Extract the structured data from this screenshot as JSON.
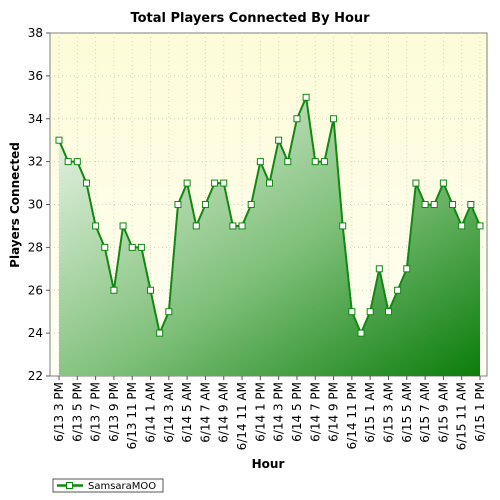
{
  "chart_data": {
    "type": "area",
    "title": "Total Players Connected By Hour",
    "xlabel": "Hour",
    "ylabel": "Players Connected",
    "ylim": [
      22,
      38
    ],
    "yticks": [
      22,
      24,
      26,
      28,
      30,
      32,
      34,
      36,
      38
    ],
    "grid": true,
    "legend_position": "bottom-left",
    "colors": {
      "line": "#118811",
      "fill_dark": "#0a7a0a",
      "fill_light": "#eef6ea",
      "background": "#fefddc"
    },
    "x": [
      "6/13 3 PM",
      "6/13 4 PM",
      "6/13 5 PM",
      "6/13 6 PM",
      "6/13 7 PM",
      "6/13 8 PM",
      "6/13 9 PM",
      "6/13 10 PM",
      "6/13 11 PM",
      "6/14 12 AM",
      "6/14 1 AM",
      "6/14 2 AM",
      "6/14 3 AM",
      "6/14 4 AM",
      "6/14 5 AM",
      "6/14 6 AM",
      "6/14 7 AM",
      "6/14 8 AM",
      "6/14 9 AM",
      "6/14 10 AM",
      "6/14 11 AM",
      "6/14 12 PM",
      "6/14 1 PM",
      "6/14 2 PM",
      "6/14 3 PM",
      "6/14 4 PM",
      "6/14 5 PM",
      "6/14 6 PM",
      "6/14 7 PM",
      "6/14 8 PM",
      "6/14 9 PM",
      "6/14 10 PM",
      "6/14 11 PM",
      "6/15 12 AM",
      "6/15 1 AM",
      "6/15 2 AM",
      "6/15 3 AM",
      "6/15 4 AM",
      "6/15 5 AM",
      "6/15 6 AM",
      "6/15 7 AM",
      "6/15 8 AM",
      "6/15 9 AM",
      "6/15 10 AM",
      "6/15 11 AM",
      "6/15 12 PM",
      "6/15 1 PM"
    ],
    "tick_labels": [
      "6/13 3 PM",
      "6/13 5 PM",
      "6/13 7 PM",
      "6/13 9 PM",
      "6/13 11 PM",
      "6/14 1 AM",
      "6/14 3 AM",
      "6/14 5 AM",
      "6/14 7 AM",
      "6/14 9 AM",
      "6/14 11 AM",
      "6/14 1 PM",
      "6/14 3 PM",
      "6/14 5 PM",
      "6/14 7 PM",
      "6/14 9 PM",
      "6/14 11 PM",
      "6/15 1 AM",
      "6/15 3 AM",
      "6/15 5 AM",
      "6/15 7 AM",
      "6/15 9 AM",
      "6/15 11 AM",
      "6/15 1 PM"
    ],
    "series": [
      {
        "name": "SamsaraMOO",
        "values": [
          33,
          32,
          32,
          31,
          29,
          28,
          26,
          29,
          28,
          28,
          26,
          24,
          25,
          30,
          31,
          29,
          30,
          31,
          31,
          29,
          29,
          30,
          32,
          31,
          33,
          32,
          34,
          35,
          32,
          32,
          34,
          29,
          25,
          24,
          25,
          27,
          25,
          26,
          27,
          31,
          30,
          30,
          31,
          30,
          29,
          30,
          29
        ]
      }
    ]
  }
}
